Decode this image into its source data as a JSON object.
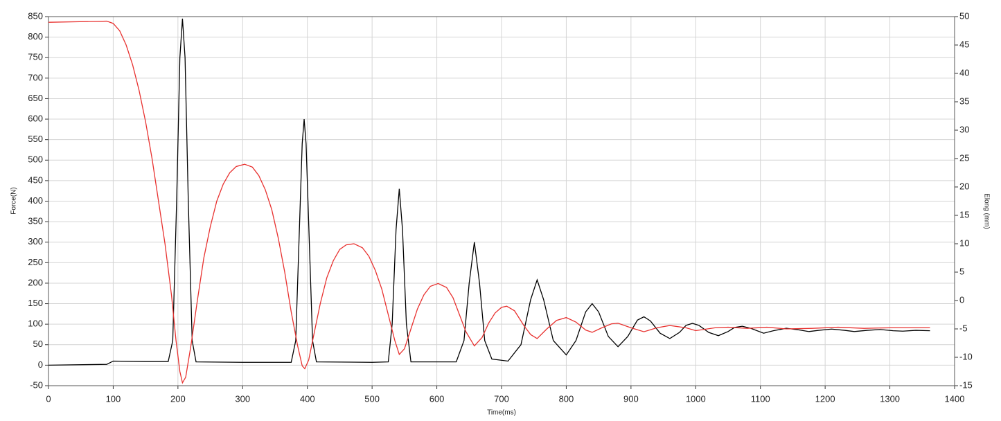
{
  "chart_data": {
    "type": "line",
    "xlabel": "Time(ms)",
    "ylabel": "Force(N)",
    "y2label": "Elong (mm)",
    "xlim": [
      0,
      1400
    ],
    "xticks": [
      0,
      100,
      200,
      300,
      400,
      500,
      600,
      700,
      800,
      900,
      1000,
      1100,
      1200,
      1300,
      1400
    ],
    "ylim": [
      -50,
      850
    ],
    "yticks": [
      -50,
      0,
      50,
      100,
      150,
      200,
      250,
      300,
      350,
      400,
      450,
      500,
      550,
      600,
      650,
      700,
      750,
      800,
      850
    ],
    "y2lim": [
      -15,
      50
    ],
    "y2ticks": [
      -15,
      -10,
      -5,
      0,
      5,
      10,
      15,
      20,
      25,
      30,
      35,
      40,
      45,
      50
    ],
    "grid": true,
    "series": [
      {
        "color": "#000000",
        "axis": "y",
        "x": [
          0,
          90,
          100,
          150,
          185,
          192,
          198,
          203,
          207,
          211,
          216,
          222,
          228,
          300,
          375,
          382,
          387,
          392,
          395,
          398,
          403,
          408,
          414,
          500,
          525,
          531,
          537,
          542,
          547,
          553,
          560,
          630,
          642,
          650,
          658,
          666,
          674,
          685,
          710,
          730,
          745,
          755,
          765,
          780,
          800,
          815,
          830,
          840,
          850,
          865,
          880,
          895,
          910,
          920,
          930,
          945,
          960,
          975,
          985,
          995,
          1005,
          1020,
          1035,
          1050,
          1060,
          1072,
          1085,
          1105,
          1120,
          1140,
          1160,
          1175,
          1190,
          1210,
          1230,
          1245,
          1265,
          1285,
          1305,
          1320,
          1340,
          1362
        ],
        "values": [
          0,
          2,
          10,
          9,
          9,
          60,
          400,
          750,
          845,
          750,
          400,
          60,
          8,
          7,
          7,
          60,
          300,
          540,
          600,
          540,
          300,
          60,
          8,
          7,
          8,
          100,
          330,
          430,
          330,
          100,
          8,
          8,
          60,
          200,
          300,
          200,
          60,
          15,
          10,
          50,
          160,
          208,
          160,
          60,
          25,
          60,
          130,
          150,
          130,
          70,
          45,
          70,
          110,
          118,
          108,
          78,
          65,
          80,
          97,
          102,
          97,
          80,
          72,
          82,
          92,
          95,
          90,
          78,
          84,
          90,
          86,
          82,
          85,
          88,
          85,
          82,
          85,
          87,
          84,
          83,
          85,
          84
        ]
      },
      {
        "color": "#e8312f",
        "axis": "y2",
        "x": [
          0,
          90,
          100,
          110,
          120,
          130,
          140,
          150,
          160,
          170,
          180,
          190,
          197,
          203,
          207,
          212,
          220,
          230,
          240,
          250,
          260,
          270,
          280,
          290,
          303,
          315,
          325,
          335,
          345,
          355,
          365,
          375,
          385,
          392,
          396,
          402,
          410,
          420,
          430,
          440,
          450,
          460,
          472,
          485,
          495,
          505,
          515,
          525,
          535,
          542,
          550,
          560,
          570,
          580,
          590,
          602,
          615,
          625,
          635,
          645,
          658,
          670,
          680,
          690,
          700,
          708,
          720,
          735,
          745,
          755,
          770,
          785,
          800,
          815,
          830,
          840,
          855,
          870,
          880,
          900,
          920,
          940,
          960,
          985,
          1000,
          1030,
          1050,
          1080,
          1110,
          1140,
          1180,
          1220,
          1260,
          1300,
          1362
        ],
        "values": [
          49,
          49.2,
          48.8,
          47.5,
          45,
          41.5,
          37,
          31.5,
          25,
          17.5,
          10,
          1,
          -7,
          -12.5,
          -14.5,
          -13.5,
          -8,
          0,
          7.5,
          13,
          17.5,
          20.5,
          22.5,
          23.6,
          24,
          23.5,
          22,
          19.5,
          16,
          11,
          5,
          -2,
          -8,
          -11.5,
          -12,
          -10.5,
          -6,
          -0.5,
          4,
          7,
          9,
          9.8,
          10,
          9.3,
          7.8,
          5.3,
          2,
          -2.5,
          -7,
          -9.5,
          -8.5,
          -5,
          -1.5,
          1,
          2.5,
          3,
          2.3,
          0.5,
          -2.5,
          -5.5,
          -8,
          -6.5,
          -4,
          -2.2,
          -1.2,
          -1,
          -1.8,
          -4.5,
          -6,
          -6.7,
          -5,
          -3.5,
          -3,
          -3.8,
          -5.2,
          -5.6,
          -4.8,
          -4.1,
          -4,
          -4.8,
          -5.5,
          -4.8,
          -4.4,
          -4.8,
          -5.3,
          -4.8,
          -4.7,
          -4.9,
          -4.7,
          -5,
          -4.9,
          -4.7,
          -4.9,
          -4.8,
          -4.8
        ]
      }
    ]
  }
}
